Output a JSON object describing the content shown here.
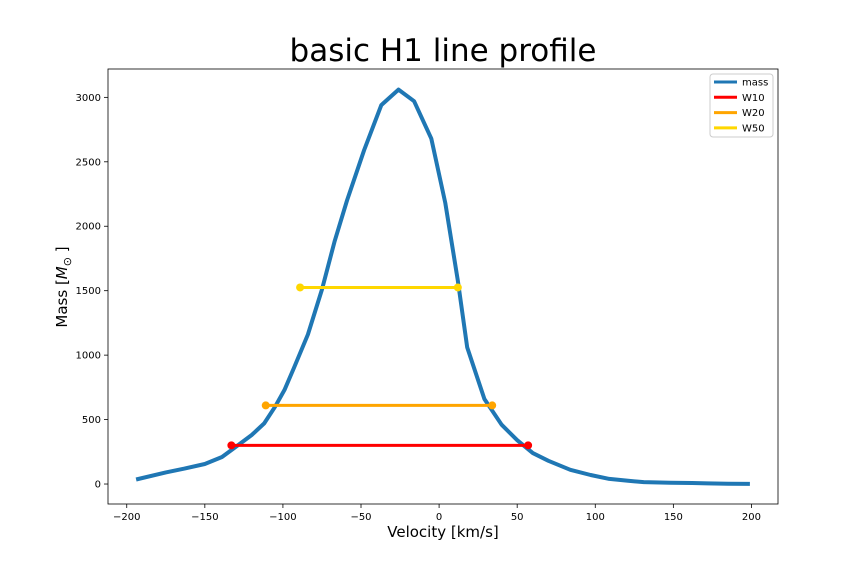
{
  "chart_data": {
    "type": "line",
    "title": "basic H1 line profile",
    "xlabel": "Velocity [km/s]",
    "ylabel_prefix": "Mass [",
    "ylabel_symbol": "M",
    "ylabel_subscript": "⊙",
    "ylabel_suffix": " ]",
    "xlim": [
      -212,
      217
    ],
    "ylim": [
      -155,
      3220
    ],
    "xticks": [
      -200,
      -150,
      -100,
      -50,
      0,
      50,
      100,
      150,
      200
    ],
    "xtick_labels": [
      "−200",
      "−150",
      "−100",
      "−50",
      "0",
      "50",
      "100",
      "150",
      "200"
    ],
    "yticks": [
      0,
      500,
      1000,
      1500,
      2000,
      2500,
      3000
    ],
    "ytick_labels": [
      "0",
      "500",
      "1000",
      "1500",
      "2000",
      "2500",
      "3000"
    ],
    "legend_position": "top-right",
    "series": [
      {
        "name": "mass",
        "kind": "line",
        "color": "#1f77b4",
        "x": [
          -194,
          -175,
          -163,
          -150,
          -139,
          -130,
          -120,
          -112,
          -105,
          -99,
          -93,
          -84,
          -75,
          -67,
          -59,
          -48,
          -37,
          -26,
          -16,
          -5,
          4,
          12,
          18,
          29,
          40,
          50,
          60,
          70,
          84,
          97,
          109,
          121,
          131,
          148,
          162,
          172,
          185,
          199
        ],
        "y": [
          35,
          90,
          120,
          155,
          210,
          290,
          380,
          470,
          600,
          730,
          900,
          1160,
          1510,
          1880,
          2200,
          2590,
          2940,
          3060,
          2970,
          2680,
          2180,
          1580,
          1060,
          660,
          460,
          340,
          240,
          180,
          110,
          70,
          40,
          25,
          15,
          10,
          8,
          5,
          2,
          1
        ]
      },
      {
        "name": "W10",
        "kind": "segment",
        "color": "#ff0000",
        "x": [
          -133,
          57
        ],
        "y": [
          300,
          300
        ]
      },
      {
        "name": "W20",
        "kind": "segment",
        "color": "#ffa500",
        "x": [
          -111,
          34
        ],
        "y": [
          610,
          610
        ]
      },
      {
        "name": "W50",
        "kind": "segment",
        "color": "#ffd700",
        "x": [
          -89,
          12
        ],
        "y": [
          1525,
          1525
        ]
      }
    ]
  }
}
